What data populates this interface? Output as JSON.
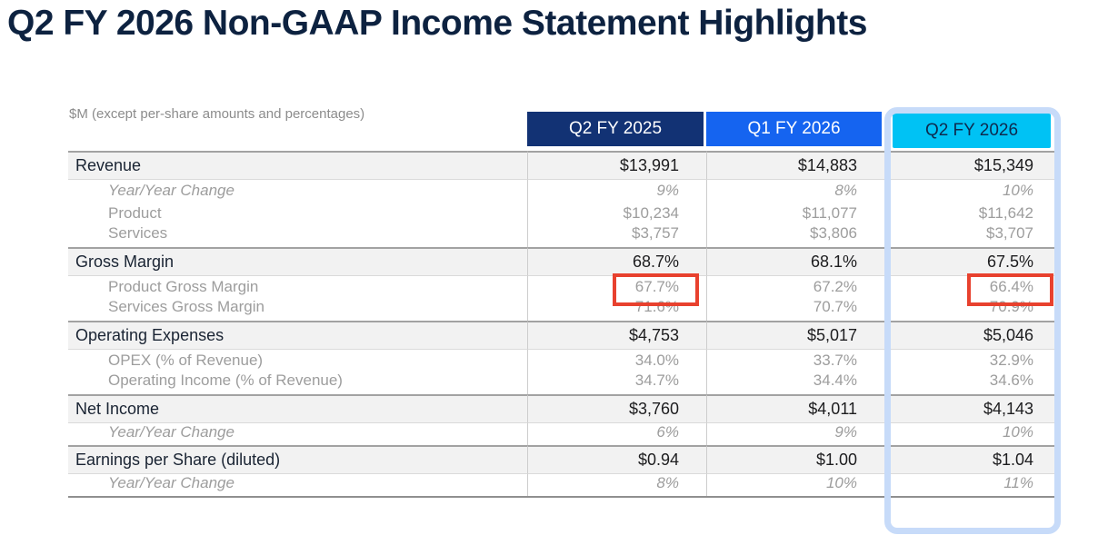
{
  "title": "Q2 FY 2026 Non-GAAP Income Statement Highlights",
  "note": "$M (except per-share amounts and percentages)",
  "columns": [
    {
      "label": "Q2 FY 2025",
      "color": "#123274"
    },
    {
      "label": "Q1 FY 2026",
      "color": "#1564f0"
    },
    {
      "label": "Q2 FY 2026",
      "color": "#00c2f4"
    }
  ],
  "colors": {
    "highlight_border": "#c7dbf9",
    "annotation": "#e8412e"
  },
  "rows": [
    {
      "label": "Revenue",
      "values": [
        "$13,991",
        "$14,883",
        "$15,349"
      ]
    },
    {
      "label": "Year/Year Change",
      "values": [
        "9%",
        "8%",
        "10%"
      ]
    },
    {
      "label": "Product",
      "values": [
        "$10,234",
        "$11,077",
        "$11,642"
      ]
    },
    {
      "label": "Services",
      "values": [
        "$3,757",
        "$3,806",
        "$3,707"
      ]
    },
    {
      "label": "Gross Margin",
      "values": [
        "68.7%",
        "68.1%",
        "67.5%"
      ]
    },
    {
      "label": "Product Gross Margin",
      "values": [
        "67.7%",
        "67.2%",
        "66.4%"
      ]
    },
    {
      "label": "Services Gross Margin",
      "values": [
        "71.6%",
        "70.7%",
        "70.9%"
      ]
    },
    {
      "label": "Operating Expenses",
      "values": [
        "$4,753",
        "$5,017",
        "$5,046"
      ]
    },
    {
      "label": "OPEX (% of Revenue)",
      "values": [
        "34.0%",
        "33.7%",
        "32.9%"
      ]
    },
    {
      "label": "Operating Income (% of Revenue)",
      "values": [
        "34.7%",
        "34.4%",
        "34.6%"
      ]
    },
    {
      "label": "Net Income",
      "values": [
        "$3,760",
        "$4,011",
        "$4,143"
      ]
    },
    {
      "label": "Year/Year Change",
      "values": [
        "6%",
        "9%",
        "10%"
      ]
    },
    {
      "label": "Earnings per Share (diluted)",
      "values": [
        "$0.94",
        "$1.00",
        "$1.04"
      ]
    },
    {
      "label": "Year/Year Change",
      "values": [
        "8%",
        "10%",
        "11%"
      ]
    }
  ]
}
